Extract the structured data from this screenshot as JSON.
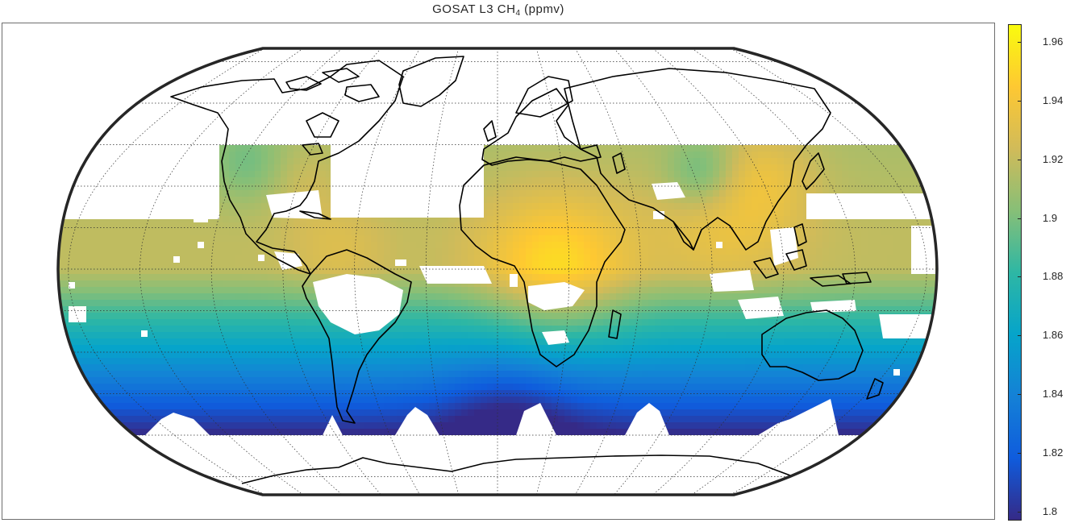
{
  "title": {
    "main": "GOSAT L3 CH",
    "sub": "4",
    "units": " (ppmv)"
  },
  "colorbar": {
    "min": 1.797,
    "max": 1.966,
    "ticks": [
      "1.8",
      "1.82",
      "1.84",
      "1.86",
      "1.88",
      "1.9",
      "1.92",
      "1.94",
      "1.96"
    ],
    "colormap": "parula",
    "stops": [
      "#352a87",
      "#0f5cdd",
      "#1481d6",
      "#06a4ca",
      "#2eb7a4",
      "#87bf77",
      "#d1bb59",
      "#fec832",
      "#f9fb0e"
    ]
  },
  "map": {
    "projection": "robinson",
    "graticule": "dotted",
    "coastlines": true,
    "frame": "black"
  }
}
